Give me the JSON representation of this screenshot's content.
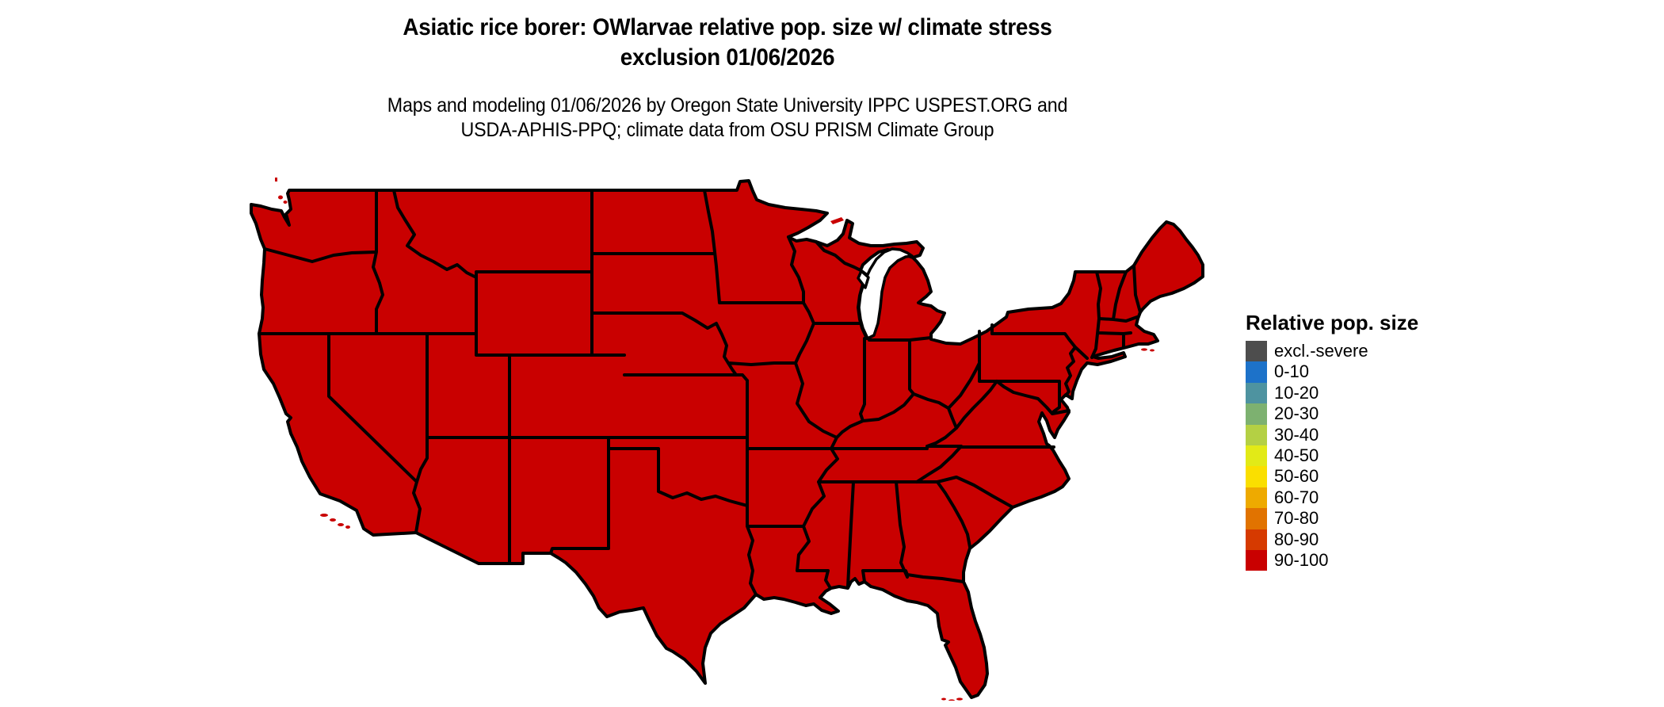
{
  "header": {
    "title_line1": "Asiatic rice borer: OWlarvae relative pop. size w/ climate stress",
    "title_line2": "exclusion 01/06/2026",
    "subtitle_line1": "Maps and modeling 01/06/2026 by Oregon State University IPPC USPEST.ORG and",
    "subtitle_line2": "USDA-APHIS-PPQ; climate data from OSU PRISM Climate Group"
  },
  "legend": {
    "title": "Relative pop. size",
    "items": [
      {
        "label": "excl.-severe",
        "color": "#4d4d4d"
      },
      {
        "label": "0-10",
        "color": "#1d72c9"
      },
      {
        "label": "10-20",
        "color": "#4e93a0"
      },
      {
        "label": "20-30",
        "color": "#7db170"
      },
      {
        "label": "30-40",
        "color": "#b4d044"
      },
      {
        "label": "40-50",
        "color": "#e2ea17"
      },
      {
        "label": "50-60",
        "color": "#fadf00"
      },
      {
        "label": "60-70",
        "color": "#eeaa00"
      },
      {
        "label": "70-80",
        "color": "#e17300"
      },
      {
        "label": "80-90",
        "color": "#d63a00"
      },
      {
        "label": "90-100",
        "color": "#c90000"
      }
    ]
  },
  "map": {
    "region": "Contiguous United States",
    "fill_value_class": "90-100",
    "fill_color": "#c90000",
    "border_color": "#000000",
    "water_color": "#ffffff"
  },
  "chart_data": {
    "type": "choropleth",
    "title": "Asiatic rice borer: OWlarvae relative pop. size w/ climate stress exclusion 01/06/2026",
    "legend_title": "Relative pop. size",
    "classes": [
      "excl.-severe",
      "0-10",
      "10-20",
      "20-30",
      "30-40",
      "40-50",
      "50-60",
      "60-70",
      "70-80",
      "80-90",
      "90-100"
    ],
    "class_colors": [
      "#4d4d4d",
      "#1d72c9",
      "#4e93a0",
      "#7db170",
      "#b4d044",
      "#e2ea17",
      "#fadf00",
      "#eeaa00",
      "#e17300",
      "#d63a00",
      "#c90000"
    ],
    "observation": "Entire contiguous United States shaded in the 90-100 relative population size class (solid red); Great Lakes and ocean shown white"
  }
}
